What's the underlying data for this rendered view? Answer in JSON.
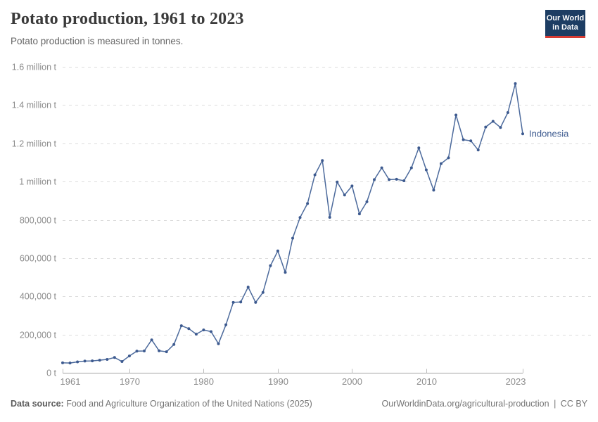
{
  "header": {
    "title": "Potato production, 1961 to 2023",
    "subtitle": "Potato production is measured in tonnes.",
    "logo": {
      "line1": "Our World",
      "line2": "in Data",
      "bg_color": "#1d3d63",
      "accent_color": "#d73b33"
    }
  },
  "footer": {
    "source_label": "Data source:",
    "source_text": "Food and Agriculture Organization of the United Nations (2025)",
    "link_text": "OurWorldinData.org/agricultural-production",
    "separator": "|",
    "license_text": "CC BY"
  },
  "chart_data": {
    "type": "line",
    "title": "Potato production, 1961 to 2023",
    "subtitle": "Potato production is measured in tonnes.",
    "xlabel": "",
    "ylabel": "",
    "unit": "t",
    "xlim": [
      1961,
      2023
    ],
    "ylim": [
      0,
      1600000
    ],
    "grid": "horizontal-dashed",
    "legend_position": "end-of-line-label",
    "x_ticks": [
      1961,
      1970,
      1980,
      1990,
      2000,
      2010,
      2023
    ],
    "y_ticks": [
      {
        "value": 0,
        "label": "0 t"
      },
      {
        "value": 200000,
        "label": "200,000 t"
      },
      {
        "value": 400000,
        "label": "400,000 t"
      },
      {
        "value": 600000,
        "label": "600,000 t"
      },
      {
        "value": 800000,
        "label": "800,000 t"
      },
      {
        "value": 1000000,
        "label": "1 million t"
      },
      {
        "value": 1200000,
        "label": "1.2 million t"
      },
      {
        "value": 1400000,
        "label": "1.4 million t"
      },
      {
        "value": 1600000,
        "label": "1.6 million t"
      }
    ],
    "series": [
      {
        "name": "Indonesia",
        "color": "#4C6A9C",
        "point_color": "#3D5A8F",
        "label_color": "#3D5A8F",
        "x": [
          1961,
          1962,
          1963,
          1964,
          1965,
          1966,
          1967,
          1968,
          1969,
          1970,
          1971,
          1972,
          1973,
          1974,
          1975,
          1976,
          1977,
          1978,
          1979,
          1980,
          1981,
          1982,
          1983,
          1984,
          1985,
          1986,
          1987,
          1988,
          1989,
          1990,
          1991,
          1992,
          1993,
          1994,
          1995,
          1996,
          1997,
          1998,
          1999,
          2000,
          2001,
          2002,
          2003,
          2004,
          2005,
          2006,
          2007,
          2008,
          2009,
          2010,
          2011,
          2012,
          2013,
          2014,
          2015,
          2016,
          2017,
          2018,
          2019,
          2020,
          2021,
          2022,
          2023
        ],
        "values": [
          52000,
          51000,
          57000,
          61000,
          62000,
          66000,
          70000,
          80000,
          59000,
          88000,
          113000,
          114000,
          172000,
          115000,
          110000,
          148000,
          246000,
          231000,
          202000,
          224000,
          215000,
          152000,
          251000,
          368000,
          370000,
          448000,
          368000,
          420000,
          560000,
          637000,
          525000,
          704000,
          812000,
          885000,
          1035000,
          1110000,
          813000,
          998000,
          930000,
          977000,
          831000,
          894000,
          1010000,
          1072000,
          1010000,
          1012000,
          1004000,
          1072000,
          1176000,
          1061000,
          955000,
          1094000,
          1124000,
          1348000,
          1219000,
          1213000,
          1165000,
          1285000,
          1315000,
          1283000,
          1361000,
          1512000,
          1250000
        ]
      }
    ]
  }
}
